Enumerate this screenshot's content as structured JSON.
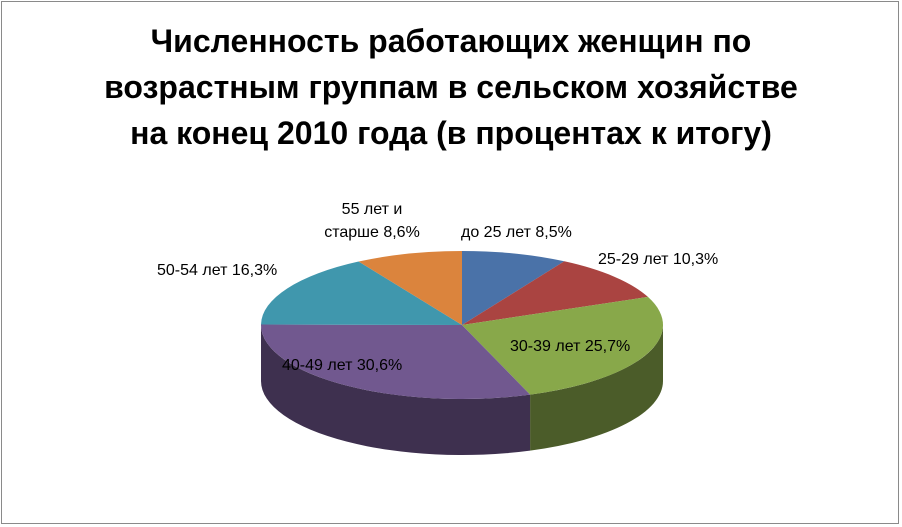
{
  "chart_data": {
    "type": "pie",
    "title_lines": [
      "Численность работающих женщин по",
      "возрастным группам в сельском хозяйстве",
      "на конец 2010 года (в процентах к итогу)"
    ],
    "slices": [
      {
        "label": "до 25 лет",
        "value": 8.5,
        "value_text": "8,5%",
        "color": "#4A72A8"
      },
      {
        "label": "25-29 лет",
        "value": 10.3,
        "value_text": "10,3%",
        "color": "#AA4441"
      },
      {
        "label": "30-39 лет",
        "value": 25.7,
        "value_text": "25,7%",
        "color": "#88A84A"
      },
      {
        "label": "40-49 лет",
        "value": 30.6,
        "value_text": "30,6%",
        "color": "#71588F"
      },
      {
        "label": "50-54 лет",
        "value": 16.3,
        "value_text": "16,3%",
        "color": "#4097AD"
      },
      {
        "label": "55 лет и старше",
        "label_lines": [
          "55 лет и",
          "старше"
        ],
        "value": 8.6,
        "value_text": "8,6%",
        "color": "#DB843D"
      }
    ],
    "projection": "3d-tilted",
    "legend": "none",
    "data_labels": "category and value"
  }
}
